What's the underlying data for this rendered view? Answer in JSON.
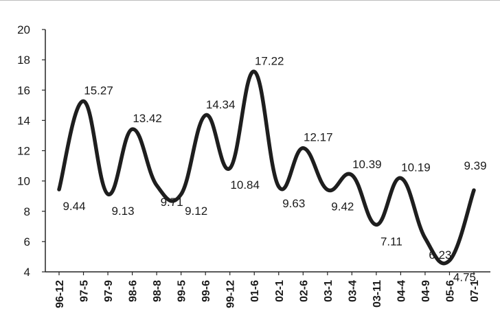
{
  "chart_data": {
    "type": "line",
    "categories": [
      "96-12",
      "97-5",
      "97-9",
      "98-6",
      "98-8",
      "99-5",
      "99-6",
      "99-12",
      "01-6",
      "02-1",
      "02-6",
      "03-1",
      "03-4",
      "03-11",
      "04-4",
      "04-9",
      "05-6",
      "07-1"
    ],
    "values": [
      9.44,
      15.27,
      9.13,
      13.42,
      9.71,
      9.12,
      14.34,
      10.84,
      17.22,
      9.63,
      12.17,
      9.42,
      10.39,
      7.11,
      10.19,
      6.23,
      4.75,
      9.39
    ],
    "data_labels": [
      "9.44",
      "15.27",
      "9.13",
      "13.42",
      "9.71",
      "9.12",
      "14.34",
      "10.84",
      "17.22",
      "9.63",
      "12.17",
      "9.42",
      "10.39",
      "7.11",
      "10.19",
      "6.23",
      "4.75",
      "9.39"
    ],
    "yticks": [
      "4",
      "6",
      "8",
      "10",
      "12",
      "14",
      "16",
      "18",
      "20"
    ],
    "ylim": [
      4,
      20
    ],
    "grid": false,
    "legend": "none",
    "line_color": "#1e1e1e"
  }
}
